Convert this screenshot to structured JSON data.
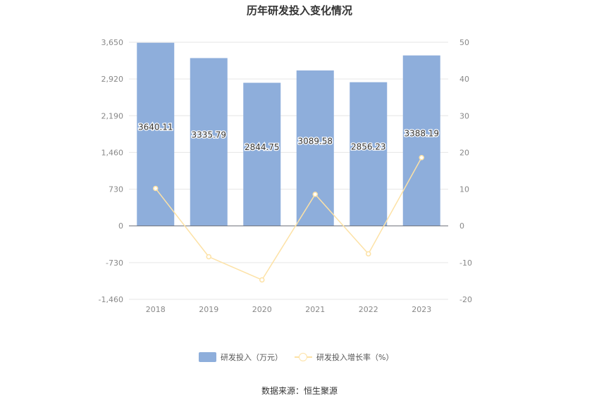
{
  "title": "历年研发投入变化情况",
  "source": "数据来源：恒生聚源",
  "colors": {
    "bar": "#8eaedb",
    "line": "#fde2a6",
    "grid": "#e6e6e6",
    "axis_text": "#888888",
    "label_text": "#333333"
  },
  "chart_data": {
    "type": "bar",
    "categories": [
      "2018",
      "2019",
      "2020",
      "2021",
      "2022",
      "2023"
    ],
    "series": [
      {
        "name": "研发投入（万元）",
        "type": "bar",
        "axis": "left",
        "values": [
          3640.11,
          3335.79,
          2844.75,
          3089.58,
          2856.23,
          3388.19
        ],
        "labels": [
          "3640.11",
          "3335.79",
          "2844.75",
          "3089.58",
          "2856.23",
          "3388.19"
        ]
      },
      {
        "name": "研发投入增长率（%）",
        "type": "line",
        "axis": "right",
        "values": [
          10.2,
          -8.4,
          -14.7,
          8.6,
          -7.6,
          18.6
        ]
      }
    ],
    "y_left": {
      "ticks": [
        "3,650",
        "2,920",
        "2,190",
        "1,460",
        "730",
        "0",
        "-730",
        "-1,460"
      ],
      "ylim": [
        -1460,
        3650
      ]
    },
    "y_right": {
      "ticks": [
        "50",
        "40",
        "30",
        "20",
        "10",
        "0",
        "-10",
        "-20"
      ],
      "ylim": [
        -20,
        50
      ]
    },
    "legend_position": "bottom",
    "grid": true
  }
}
